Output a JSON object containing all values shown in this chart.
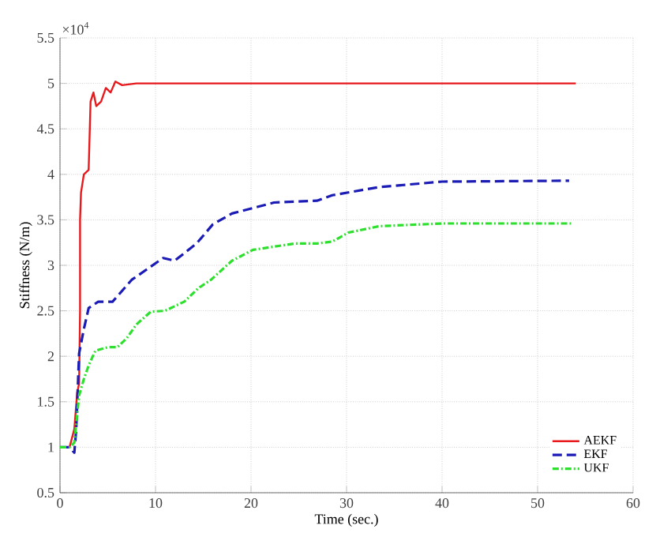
{
  "chart_data": {
    "type": "line",
    "xlabel": "Time (sec.)",
    "ylabel": "Stiffness (N/m)",
    "xlim": [
      0,
      60
    ],
    "ylim": [
      0.5,
      5.5
    ],
    "xticks": [
      0,
      10,
      20,
      30,
      40,
      50,
      60
    ],
    "yticks": [
      0.5,
      1,
      1.5,
      2,
      2.5,
      3,
      3.5,
      4,
      4.5,
      5,
      5.5
    ],
    "grid": true,
    "legend": "bottom right",
    "marker": "none",
    "annotations": [
      "×10$^{4}$"
    ],
    "series": [
      {
        "name": "AEKF",
        "color": "#e8191c",
        "line_style": "solid",
        "x": [
          0,
          1,
          1.5,
          1.8,
          2.0,
          2.1,
          2.1,
          2.2,
          2.5,
          3.0,
          3.2,
          3.5,
          3.8,
          4.3,
          4.8,
          5.3,
          5.8,
          6.5,
          8,
          54
        ],
        "values": [
          1,
          1.0,
          1.2,
          1.6,
          1.7,
          2.5,
          3.5,
          3.8,
          4.0,
          4.05,
          4.8,
          4.9,
          4.75,
          4.8,
          4.95,
          4.9,
          5.02,
          4.98,
          5.0,
          5.0
        ]
      },
      {
        "name": "EKF",
        "color": "#1b1bb5",
        "line_style": "dashed",
        "x": [
          0,
          1,
          1.5,
          1.7,
          2,
          2.5,
          3,
          4,
          5.5,
          7.5,
          10.8,
          12,
          14.3,
          16,
          18,
          22.4,
          26.9,
          28.5,
          33.4,
          40,
          53.3
        ],
        "values": [
          1,
          1.0,
          0.94,
          1.2,
          2.03,
          2.3,
          2.53,
          2.6,
          2.6,
          2.84,
          3.08,
          3.05,
          3.24,
          3.45,
          3.57,
          3.69,
          3.71,
          3.77,
          3.86,
          3.92,
          3.93
        ]
      },
      {
        "name": "UKF",
        "color": "#2ee02e",
        "line_style": "dashdot",
        "x": [
          0,
          1,
          1.5,
          2,
          2.5,
          3,
          3.7,
          5,
          6,
          7,
          8,
          9.5,
          11,
          13,
          14.5,
          15.8,
          18,
          20.2,
          24.6,
          26.9,
          28.5,
          30.2,
          33.4,
          40,
          53.5
        ],
        "values": [
          1,
          1.0,
          1.05,
          1.57,
          1.75,
          1.9,
          2.06,
          2.1,
          2.1,
          2.2,
          2.35,
          2.49,
          2.5,
          2.6,
          2.75,
          2.84,
          3.05,
          3.17,
          3.24,
          3.24,
          3.26,
          3.36,
          3.43,
          3.46,
          3.46
        ]
      }
    ]
  }
}
